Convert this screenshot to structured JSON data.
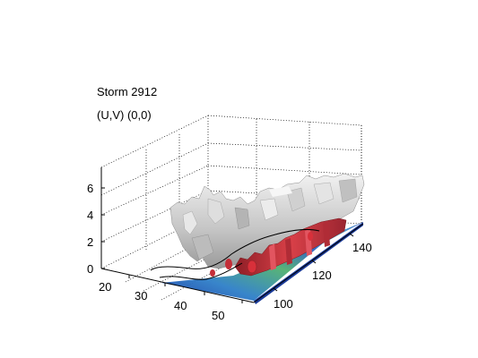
{
  "title": {
    "line1": "Storm 2912",
    "line2": "(U,V) (0,0)"
  },
  "axes": {
    "z_ticks": [
      "0",
      "2",
      "4",
      "6"
    ],
    "y_ticks": [
      "20",
      "30",
      "40",
      "50"
    ],
    "x_ticks": [
      "100",
      "120",
      "140"
    ]
  },
  "colors": {
    "isosurface_gray": "#c8c8c8",
    "isosurface_red": "#c0303a",
    "floor_blue": "#1f4fb8",
    "floor_green": "#4fb070",
    "floor_cyan": "#5ab8d8",
    "grid": "#000000"
  }
}
